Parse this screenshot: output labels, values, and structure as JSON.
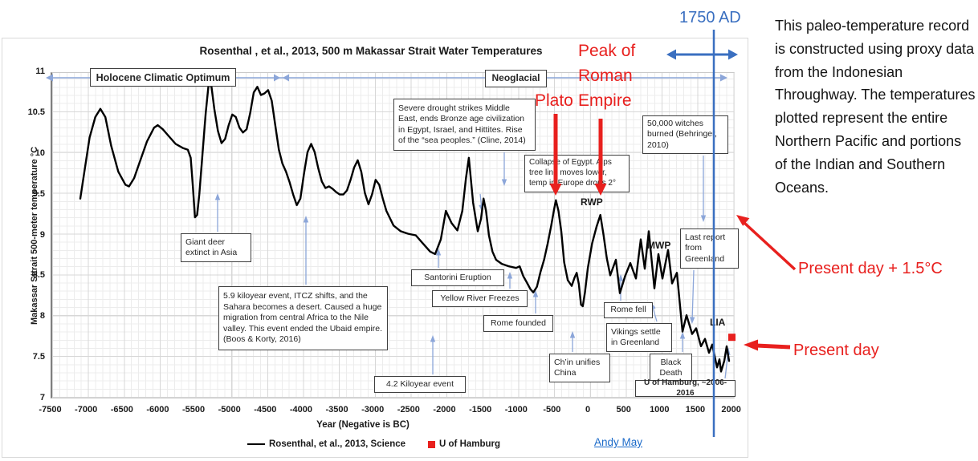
{
  "title": "Rosenthal , et al., 2013, 500 m Makassar Strait Water Temperatures",
  "side_note": "This paleo-temperature record is constructed using proxy data from the Indonesian Throughway. The temperatures plotted represent the entire Northern Pacific and portions of the Indian and Southern Oceans.",
  "credit_link": "Andy May",
  "blue_labels": {
    "year_1750": "1750 AD"
  },
  "red_labels": {
    "peak_roman": "Peak of Roman Empire",
    "plato": "Plato",
    "present_plus": "Present day + 1.5°C",
    "present": "Present day"
  },
  "period_labels": {
    "rwp": "RWP",
    "mwp": "MWP",
    "lia": "LIA"
  },
  "annotations": {
    "holocene": "Holocene Climatic Optimum",
    "neoglacial": "Neoglacial",
    "severe_drought": "Severe drought strikes Middle East, ends Bronze age civilization in Egypt, Israel, and Hittites. Rise of the “sea peoples.” (Cline, 2014)",
    "witches": "50,000 witches burned (Behringer, 2010)",
    "collapse_egypt": "Collapse of Egypt. Alps tree line moves lower, temp in Europe drops 2°",
    "giant_deer": "Giant deer extinct in Asia",
    "last_report": "Last report from Greenland",
    "santorini": "Santorini Eruption",
    "yellow_river": "Yellow River Freezes",
    "kiloyear59": "5.9 kiloyear event, ITCZ shifts, and the Sahara becomes a desert.  Caused a huge migration from central Africa to the Nile valley.  This event ended the Ubaid empire. (Boos & Korty, 2016)",
    "rome_founded": "Rome founded",
    "rome_fell": "Rome fell",
    "vikings": "Vikings settle in Greenland",
    "chin": "Ch’in unifies China",
    "black_death": "Black Death",
    "kiloyear42": "4.2 Kiloyear event",
    "u_hamburg": "U of Hamburg, ~2006-2016"
  },
  "legend": [
    {
      "label": "Rosenthal, et al., 2013, Science",
      "swatch": "line",
      "color": "#000000"
    },
    {
      "label": "U of Hamburg",
      "swatch": "square",
      "color": "#e8201e"
    }
  ],
  "colors": {
    "curve": "#000000",
    "red_accent": "#e8201e",
    "blue_accent": "#3a6fc0",
    "light_blue_arrow": "#8ca6d9",
    "link_blue": "#1b6ac9"
  },
  "chart_data": {
    "type": "line",
    "title": "Rosenthal , et al., 2013, 500 m Makassar Strait Water Temperatures",
    "xlabel": "Year (Negative is BC)",
    "ylabel": "Makassar Sttrait 500-meter temperature °C",
    "xlim": [
      -7500,
      2000
    ],
    "ylim": [
      7,
      11
    ],
    "grid": true,
    "legend_position": "bottom",
    "x_ticks": [
      -7500,
      -7000,
      -6500,
      -6000,
      -5500,
      -5000,
      -4500,
      -4000,
      -3500,
      -3000,
      -2500,
      -2000,
      -1500,
      -1000,
      -500,
      0,
      500,
      1000,
      1500,
      2000
    ],
    "y_ticks": [
      11,
      10.5,
      10,
      9.5,
      9,
      8.5,
      8,
      7.5,
      7
    ],
    "series": [
      {
        "name": "Rosenthal, et al., 2013, Science",
        "type": "line",
        "color": "#000000",
        "points": [
          [
            -7080,
            9.45
          ],
          [
            -7020,
            9.8
          ],
          [
            -6950,
            10.2
          ],
          [
            -6870,
            10.45
          ],
          [
            -6800,
            10.55
          ],
          [
            -6730,
            10.45
          ],
          [
            -6650,
            10.1
          ],
          [
            -6550,
            9.78
          ],
          [
            -6450,
            9.62
          ],
          [
            -6400,
            9.6
          ],
          [
            -6330,
            9.7
          ],
          [
            -6250,
            9.9
          ],
          [
            -6150,
            10.15
          ],
          [
            -6050,
            10.32
          ],
          [
            -6000,
            10.35
          ],
          [
            -5930,
            10.3
          ],
          [
            -5850,
            10.22
          ],
          [
            -5750,
            10.12
          ],
          [
            -5650,
            10.07
          ],
          [
            -5580,
            10.05
          ],
          [
            -5540,
            9.95
          ],
          [
            -5510,
            9.6
          ],
          [
            -5480,
            9.22
          ],
          [
            -5450,
            9.25
          ],
          [
            -5420,
            9.5
          ],
          [
            -5380,
            9.95
          ],
          [
            -5330,
            10.5
          ],
          [
            -5290,
            10.85
          ],
          [
            -5250,
            10.82
          ],
          [
            -5210,
            10.55
          ],
          [
            -5160,
            10.28
          ],
          [
            -5110,
            10.13
          ],
          [
            -5060,
            10.18
          ],
          [
            -5010,
            10.35
          ],
          [
            -4960,
            10.48
          ],
          [
            -4910,
            10.45
          ],
          [
            -4860,
            10.32
          ],
          [
            -4810,
            10.26
          ],
          [
            -4760,
            10.3
          ],
          [
            -4710,
            10.5
          ],
          [
            -4660,
            10.75
          ],
          [
            -4610,
            10.82
          ],
          [
            -4560,
            10.72
          ],
          [
            -4510,
            10.74
          ],
          [
            -4460,
            10.78
          ],
          [
            -4410,
            10.65
          ],
          [
            -4360,
            10.35
          ],
          [
            -4310,
            10.05
          ],
          [
            -4260,
            9.88
          ],
          [
            -4210,
            9.78
          ],
          [
            -4160,
            9.65
          ],
          [
            -4110,
            9.5
          ],
          [
            -4060,
            9.37
          ],
          [
            -4010,
            9.45
          ],
          [
            -3960,
            9.75
          ],
          [
            -3910,
            10.02
          ],
          [
            -3860,
            10.12
          ],
          [
            -3810,
            10.02
          ],
          [
            -3760,
            9.82
          ],
          [
            -3710,
            9.66
          ],
          [
            -3660,
            9.58
          ],
          [
            -3610,
            9.6
          ],
          [
            -3560,
            9.57
          ],
          [
            -3510,
            9.53
          ],
          [
            -3460,
            9.5
          ],
          [
            -3410,
            9.5
          ],
          [
            -3360,
            9.55
          ],
          [
            -3310,
            9.68
          ],
          [
            -3260,
            9.83
          ],
          [
            -3210,
            9.92
          ],
          [
            -3160,
            9.78
          ],
          [
            -3110,
            9.52
          ],
          [
            -3060,
            9.38
          ],
          [
            -3010,
            9.5
          ],
          [
            -2960,
            9.68
          ],
          [
            -2910,
            9.62
          ],
          [
            -2860,
            9.45
          ],
          [
            -2810,
            9.3
          ],
          [
            -2710,
            9.12
          ],
          [
            -2610,
            9.05
          ],
          [
            -2510,
            9.02
          ],
          [
            -2400,
            9.0
          ],
          [
            -2300,
            8.9
          ],
          [
            -2200,
            8.8
          ],
          [
            -2130,
            8.77
          ],
          [
            -2050,
            8.95
          ],
          [
            -1980,
            9.3
          ],
          [
            -1900,
            9.15
          ],
          [
            -1820,
            9.06
          ],
          [
            -1750,
            9.3
          ],
          [
            -1700,
            9.7
          ],
          [
            -1660,
            9.95
          ],
          [
            -1600,
            9.4
          ],
          [
            -1535,
            9.05
          ],
          [
            -1490,
            9.2
          ],
          [
            -1455,
            9.45
          ],
          [
            -1420,
            9.3
          ],
          [
            -1380,
            9.0
          ],
          [
            -1330,
            8.8
          ],
          [
            -1280,
            8.7
          ],
          [
            -1200,
            8.65
          ],
          [
            -1100,
            8.62
          ],
          [
            -1000,
            8.6
          ],
          [
            -950,
            8.62
          ],
          [
            -900,
            8.5
          ],
          [
            -850,
            8.42
          ],
          [
            -800,
            8.34
          ],
          [
            -760,
            8.3
          ],
          [
            -710,
            8.37
          ],
          [
            -660,
            8.55
          ],
          [
            -610,
            8.7
          ],
          [
            -560,
            8.9
          ],
          [
            -510,
            9.12
          ],
          [
            -470,
            9.32
          ],
          [
            -445,
            9.43
          ],
          [
            -410,
            9.3
          ],
          [
            -370,
            9.05
          ],
          [
            -330,
            8.67
          ],
          [
            -280,
            8.45
          ],
          [
            -225,
            8.38
          ],
          [
            -185,
            8.48
          ],
          [
            -155,
            8.54
          ],
          [
            -125,
            8.4
          ],
          [
            -95,
            8.15
          ],
          [
            -70,
            8.13
          ],
          [
            -40,
            8.3
          ],
          [
            0,
            8.6
          ],
          [
            60,
            8.9
          ],
          [
            120,
            9.1
          ],
          [
            175,
            9.25
          ],
          [
            220,
            9.0
          ],
          [
            265,
            8.72
          ],
          [
            313,
            8.51
          ],
          [
            392,
            8.7
          ],
          [
            448,
            8.29
          ],
          [
            520,
            8.5
          ],
          [
            593,
            8.66
          ],
          [
            672,
            8.47
          ],
          [
            739,
            8.95
          ],
          [
            795,
            8.59
          ],
          [
            851,
            9.05
          ],
          [
            929,
            8.35
          ],
          [
            985,
            8.77
          ],
          [
            1041,
            8.47
          ],
          [
            1120,
            8.82
          ],
          [
            1176,
            8.41
          ],
          [
            1243,
            8.54
          ],
          [
            1321,
            7.82
          ],
          [
            1377,
            8.02
          ],
          [
            1456,
            7.79
          ],
          [
            1512,
            7.86
          ],
          [
            1579,
            7.64
          ],
          [
            1635,
            7.73
          ],
          [
            1691,
            7.56
          ],
          [
            1736,
            7.66
          ],
          [
            1803,
            7.38
          ],
          [
            1837,
            7.48
          ],
          [
            1859,
            7.33
          ],
          [
            1904,
            7.46
          ],
          [
            1937,
            7.64
          ],
          [
            1971,
            7.46
          ]
        ]
      },
      {
        "name": "U of Hamburg",
        "type": "point",
        "color": "#e8201e",
        "points": [
          [
            2010,
            7.75
          ]
        ]
      }
    ],
    "annotations_note": "1750 AD reference line at x=1750"
  }
}
